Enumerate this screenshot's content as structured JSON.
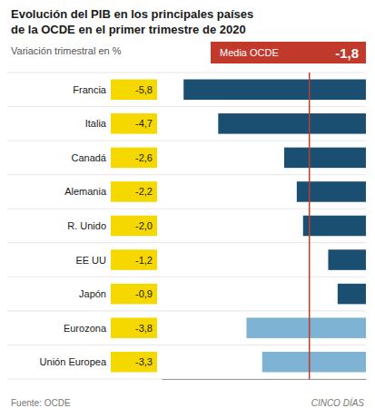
{
  "chart_data": {
    "type": "bar",
    "orientation": "horizontal",
    "title": "Evolución del PIB en los principales países\nde la OCDE en el primer trimestre de 2020",
    "subtitle": "Variación trimestral en %",
    "categories": [
      "Francia",
      "Italia",
      "Canadá",
      "Alemania",
      "R. Unido",
      "EE UU",
      "Japón",
      "Eurozona",
      "Unión Europea"
    ],
    "values": [
      -5.8,
      -4.7,
      -2.6,
      -2.2,
      -2.0,
      -1.2,
      -0.9,
      -3.8,
      -3.3
    ],
    "value_labels": [
      "-5,8",
      "-4,7",
      "-2,6",
      "-2,2",
      "-2,0",
      "-1,2",
      "-0,9",
      "-3,8",
      "-3,3"
    ],
    "colors": [
      "#1b4f72",
      "#1b4f72",
      "#1b4f72",
      "#1b4f72",
      "#1b4f72",
      "#1b4f72",
      "#1b4f72",
      "#7fb3d3",
      "#7fb3d3"
    ],
    "data_labels": true,
    "tick_labels": false,
    "grid": false,
    "xlim": [
      -6.5,
      0
    ],
    "reference_line": {
      "value": -1.8,
      "label": "Media OCDE",
      "value_label": "-1,8",
      "color": "#c0392b"
    },
    "source": "Fuente: OCDE",
    "brand": "CINCO DÍAS"
  }
}
